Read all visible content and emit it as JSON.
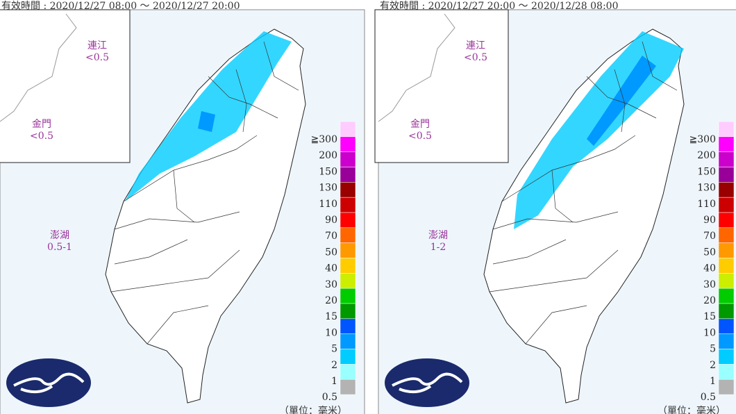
{
  "panels": [
    {
      "header": "有效時間 : 2020/12/27 08:00 ～ 2020/12/27 20:00",
      "islands": [
        {
          "name": "連江",
          "value": "<0.5"
        },
        {
          "name": "金門",
          "value": "<0.5"
        },
        {
          "name": "澎湖",
          "value": "0.5-1"
        }
      ],
      "unit": "（單位：毫米）"
    },
    {
      "header": "有效時間 : 2020/12/27 20:00 ～ 2020/12/28 08:00",
      "islands": [
        {
          "name": "連江",
          "value": "<0.5"
        },
        {
          "name": "金門",
          "value": "<0.5"
        },
        {
          "name": "澎湖",
          "value": "1-2"
        }
      ],
      "unit": "（單位：毫米）"
    }
  ],
  "legend": {
    "labels": [
      "≧300",
      "200",
      "150",
      "130",
      "110",
      "90",
      "70",
      "50",
      "40",
      "30",
      "20",
      "15",
      "10",
      "5",
      "2",
      "1",
      "0.5"
    ],
    "colors": [
      "#ffccff",
      "#ff00ff",
      "#cc00cc",
      "#990099",
      "#990000",
      "#cc0000",
      "#ff0000",
      "#ff6600",
      "#ff9900",
      "#ffcc00",
      "#ccee00",
      "#00cc00",
      "#009900",
      "#0055ff",
      "#0099ff",
      "#00ccff",
      "#99ffff",
      "#b3b3b3"
    ]
  }
}
